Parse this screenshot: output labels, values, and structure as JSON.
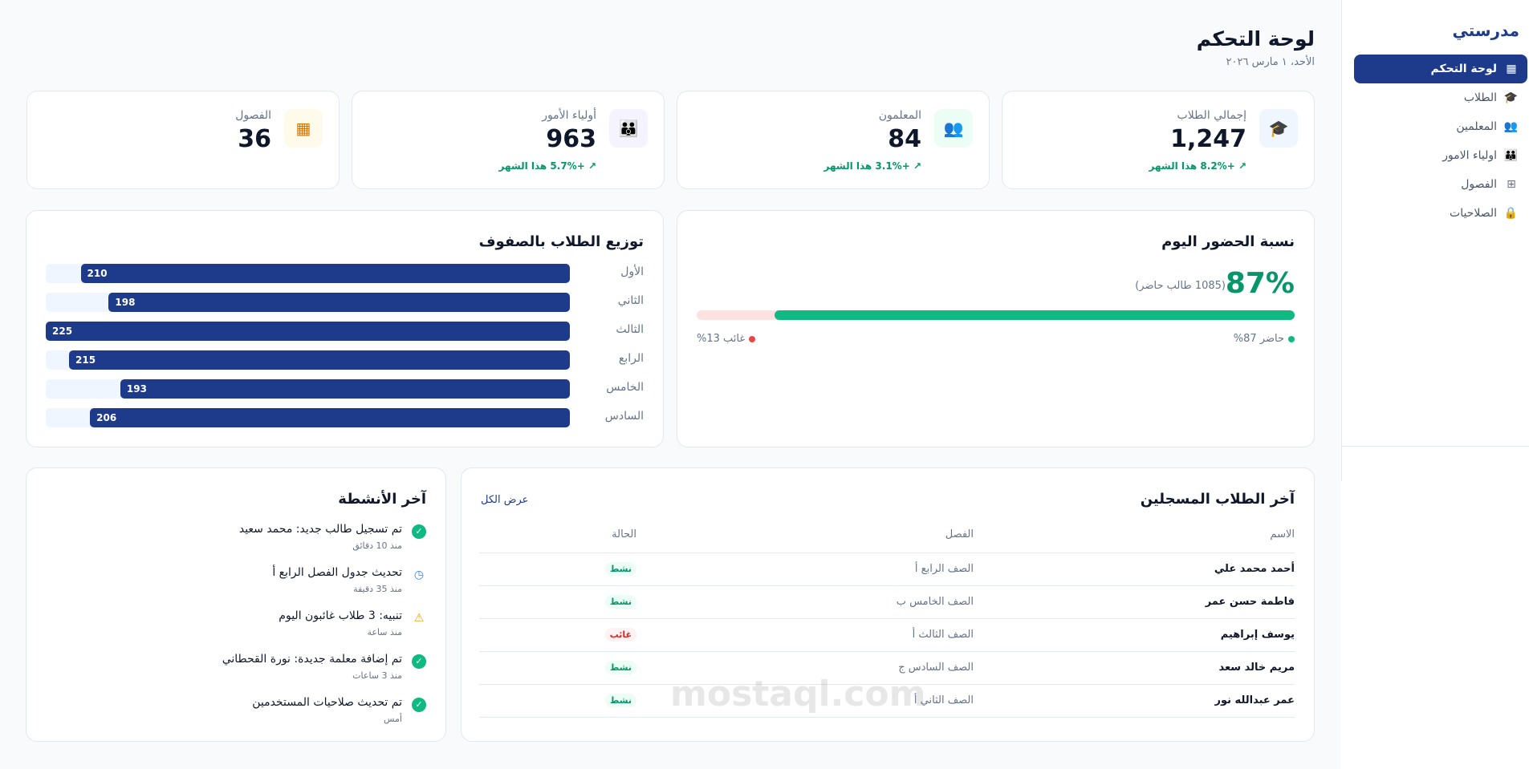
{
  "sidebar": {
    "brand": "مدرستي",
    "items": [
      {
        "label": "لوحة التحكم",
        "icon": "dashboard-icon",
        "glyph": "▦",
        "active": true
      },
      {
        "label": "الطلاب",
        "icon": "graduation-cap-icon",
        "glyph": "🎓"
      },
      {
        "label": "المعلمين",
        "icon": "users-icon",
        "glyph": "👥"
      },
      {
        "label": "اولياء الامور",
        "icon": "users-group-icon",
        "glyph": "👪"
      },
      {
        "label": "الفصول",
        "icon": "grid-icon",
        "glyph": "⊞"
      },
      {
        "label": "الصلاحيات",
        "icon": "lock-icon",
        "glyph": "🔒"
      }
    ]
  },
  "header": {
    "title": "لوحة التحكم",
    "date": "الأحد، ١ مارس ٢٠٢٦"
  },
  "stats": [
    {
      "label": "إجمالي الطلاب",
      "value": "1,247",
      "trend": "+8.2% هذا الشهر",
      "icon": "graduation-cap-icon",
      "glyph": "🎓",
      "bg": "#eff6ff",
      "color": "#1d4ed8"
    },
    {
      "label": "المعلمون",
      "value": "84",
      "trend": "+3.1% هذا الشهر",
      "icon": "users-icon",
      "glyph": "👥",
      "bg": "#ecfdf5",
      "color": "#059669"
    },
    {
      "label": "أولياء الأمور",
      "value": "963",
      "trend": "+5.7% هذا الشهر",
      "icon": "users-group-icon",
      "glyph": "👪",
      "bg": "#f5f3ff",
      "color": "#7c3aed"
    },
    {
      "label": "الفصول",
      "value": "36",
      "trend": null,
      "icon": "grid-icon",
      "glyph": "▦",
      "bg": "#fffbeb",
      "color": "#d97706"
    }
  ],
  "attendance": {
    "title": "نسبة الحضور اليوم",
    "percent_label": "87%",
    "present_count": "(1085 طالب حاضر)",
    "present_pct": 87,
    "legend_present": "حاضر 87%",
    "legend_absent": "غائب 13%",
    "present_color": "#10b981",
    "absent_color": "#ef4444"
  },
  "chart_data": {
    "type": "bar",
    "title": "توزيع الطلاب بالصفوف",
    "categories": [
      "الأول",
      "الثاني",
      "الثالث",
      "الرابع",
      "الخامس",
      "السادس"
    ],
    "values": [
      210,
      198,
      225,
      215,
      193,
      206
    ],
    "xlim": [
      0,
      225
    ]
  },
  "students": {
    "title": "آخر الطلاب المسجلين",
    "view_all": "عرض الكل",
    "columns": [
      "الاسم",
      "الفصل",
      "الحالة"
    ],
    "rows": [
      {
        "name": "أحمد محمد علي",
        "class": "الصف الرابع أ",
        "status": "نشط",
        "ok": true
      },
      {
        "name": "فاطمة حسن عمر",
        "class": "الصف الخامس ب",
        "status": "نشط",
        "ok": true
      },
      {
        "name": "يوسف إبراهيم",
        "class": "الصف الثالث أ",
        "status": "غائب",
        "ok": false
      },
      {
        "name": "مريم خالد سعد",
        "class": "الصف السادس ج",
        "status": "نشط",
        "ok": true
      },
      {
        "name": "عمر عبدالله نور",
        "class": "الصف الثاني أ",
        "status": "نشط",
        "ok": true
      }
    ]
  },
  "activity": {
    "title": "آخر الأنشطة",
    "items": [
      {
        "text": "تم تسجيل طالب جديد: محمد سعيد",
        "time": "منذ 10 دقائق",
        "icon": "check-circle-icon",
        "glyph": "✓",
        "color": "#10b981"
      },
      {
        "text": "تحديث جدول الفصل الرابع أ",
        "time": "منذ 35 دقيقة",
        "icon": "clock-icon",
        "glyph": "◷",
        "color": "#3b82f6"
      },
      {
        "text": "تنبيه: 3 طلاب غائبون اليوم",
        "time": "منذ ساعة",
        "icon": "warning-icon",
        "glyph": "⚠",
        "color": "#f59e0b"
      },
      {
        "text": "تم إضافة معلمة جديدة: نورة القحطاني",
        "time": "منذ 3 ساعات",
        "icon": "check-circle-icon",
        "glyph": "✓",
        "color": "#10b981"
      },
      {
        "text": "تم تحديث صلاحيات المستخدمين",
        "time": "أمس",
        "icon": "check-circle-icon",
        "glyph": "✓",
        "color": "#10b981"
      }
    ]
  },
  "watermark": "mostaql.com"
}
